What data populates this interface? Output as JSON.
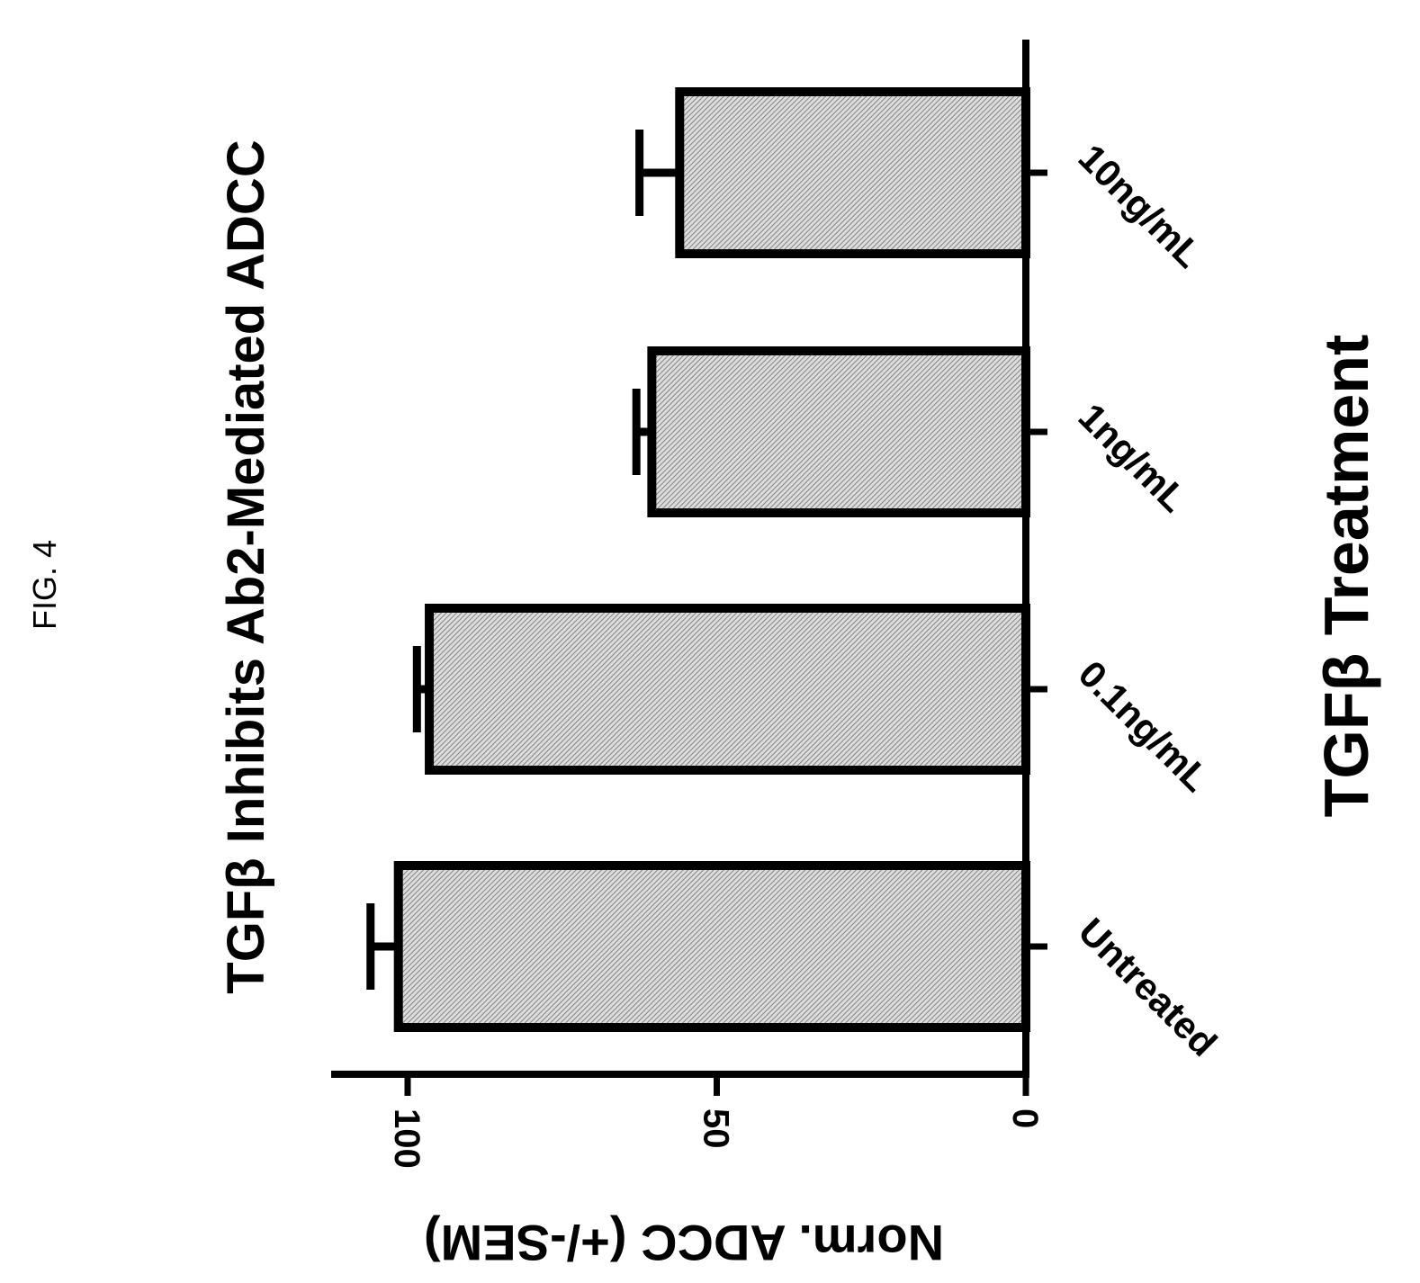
{
  "figure": {
    "label": "FIG. 4"
  },
  "chart_data": {
    "type": "bar",
    "orientation": "rotated",
    "title": "TGFβ Inhibits Ab2-Mediated ADCC",
    "xlabel": "TGFβ Treatment",
    "ylabel": "Norm. ADCC (+/-SEM)",
    "categories": [
      "Untreated",
      "0.1ng/mL",
      "1ng/mL",
      "10ng/mL"
    ],
    "values": [
      101.5,
      96.5,
      60.5,
      56
    ],
    "errors": [
      4.5,
      2,
      2.5,
      6.5
    ],
    "ylim": [
      0,
      100
    ],
    "yticks": [
      0,
      50,
      100
    ],
    "ytick_labels": [
      "0",
      "50",
      "100"
    ],
    "bar_fill": "#c9c9c9",
    "bar_edge": "#000000",
    "grid": false,
    "legend": "none"
  }
}
